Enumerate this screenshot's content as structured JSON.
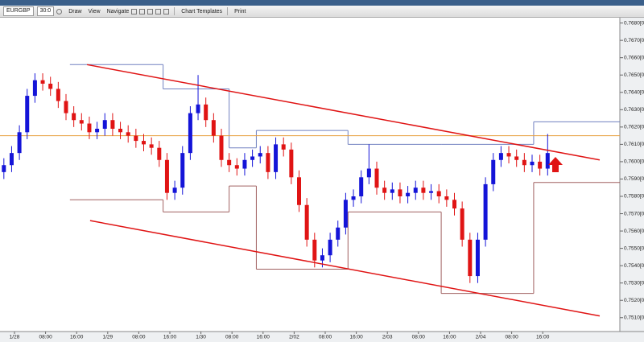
{
  "toolbar": {
    "symbol": "EURGBP",
    "period": "30:0",
    "menus": [
      "Draw",
      "View",
      "Navigate",
      "Chart Templates",
      "Print"
    ]
  },
  "chart_data": {
    "type": "candlestick",
    "x_labels": [
      "1/28",
      "08:00",
      "16:00",
      "1/29",
      "08:00",
      "16:00",
      "1/30",
      "08:00",
      "16:00",
      "2/02",
      "08:00",
      "16:00",
      "2/03",
      "08:00",
      "16:00",
      "2/04",
      "08:00",
      "16:00"
    ],
    "open": [
      0.7594,
      0.7598,
      0.7605,
      0.7617,
      0.7638,
      0.7647,
      0.7645,
      0.7642,
      0.7635,
      0.7628,
      0.7624,
      0.7622,
      0.7617,
      0.7619,
      0.7624,
      0.7619,
      0.7617,
      0.7615,
      0.7612,
      0.761,
      0.7608,
      0.7601,
      0.7582,
      0.7585,
      0.7605,
      0.7628,
      0.7633,
      0.7624,
      0.7615,
      0.7601,
      0.7598,
      0.7596,
      0.7601,
      0.7603,
      0.7605,
      0.7594,
      0.761,
      0.7607,
      0.7591,
      0.7575,
      0.7555,
      0.7543,
      0.7546,
      0.7555,
      0.7562,
      0.7578,
      0.758,
      0.7591,
      0.7596,
      0.7585,
      0.7582,
      0.7584,
      0.758,
      0.7582,
      0.7585,
      0.7582,
      0.7583,
      0.758,
      0.7578,
      0.7573,
      0.7555,
      0.7534,
      0.7555,
      0.7587,
      0.7601,
      0.7605,
      0.7603,
      0.7601,
      0.7598,
      0.76,
      0.7596
    ],
    "high": [
      0.7602,
      0.7609,
      0.7621,
      0.7642,
      0.7651,
      0.7651,
      0.7649,
      0.7646,
      0.7639,
      0.7632,
      0.7628,
      0.7626,
      0.7623,
      0.7628,
      0.7628,
      0.7623,
      0.7621,
      0.7619,
      0.7616,
      0.7614,
      0.7612,
      0.7605,
      0.7589,
      0.7609,
      0.7632,
      0.765,
      0.7637,
      0.7628,
      0.7619,
      0.7605,
      0.7602,
      0.7605,
      0.7607,
      0.7609,
      0.7609,
      0.7614,
      0.7614,
      0.7611,
      0.7595,
      0.7579,
      0.7559,
      0.755,
      0.7559,
      0.7566,
      0.7582,
      0.7584,
      0.7595,
      0.761,
      0.76,
      0.7589,
      0.7588,
      0.7588,
      0.7586,
      0.7589,
      0.7589,
      0.7587,
      0.7587,
      0.7584,
      0.7582,
      0.7577,
      0.7559,
      0.7559,
      0.7591,
      0.7605,
      0.7609,
      0.7609,
      0.7607,
      0.7605,
      0.7604,
      0.7604,
      0.7616
    ],
    "low": [
      0.759,
      0.7594,
      0.7601,
      0.7613,
      0.7634,
      0.7641,
      0.7638,
      0.7631,
      0.7624,
      0.762,
      0.7618,
      0.7613,
      0.7613,
      0.7615,
      0.7615,
      0.7613,
      0.7611,
      0.7608,
      0.7606,
      0.7604,
      0.7597,
      0.7578,
      0.7578,
      0.7581,
      0.7601,
      0.7624,
      0.762,
      0.7611,
      0.7597,
      0.7594,
      0.7592,
      0.7592,
      0.7597,
      0.7599,
      0.759,
      0.759,
      0.7603,
      0.7587,
      0.7571,
      0.7551,
      0.7539,
      0.7539,
      0.7542,
      0.7551,
      0.7558,
      0.7574,
      0.7576,
      0.7587,
      0.7581,
      0.7578,
      0.7578,
      0.7576,
      0.7576,
      0.7578,
      0.7578,
      0.7578,
      0.7576,
      0.7574,
      0.7569,
      0.7551,
      0.753,
      0.753,
      0.7551,
      0.7583,
      0.7597,
      0.7599,
      0.7597,
      0.7594,
      0.7594,
      0.7592,
      0.7592
    ],
    "close": [
      0.7598,
      0.7605,
      0.7617,
      0.7638,
      0.7647,
      0.7645,
      0.7642,
      0.7635,
      0.7628,
      0.7624,
      0.7622,
      0.7617,
      0.7619,
      0.7624,
      0.7619,
      0.7617,
      0.7615,
      0.7612,
      0.761,
      0.7608,
      0.7601,
      0.7582,
      0.7585,
      0.7605,
      0.7628,
      0.7633,
      0.7624,
      0.7615,
      0.7601,
      0.7598,
      0.7596,
      0.7601,
      0.7603,
      0.7605,
      0.7594,
      0.761,
      0.7607,
      0.7591,
      0.7575,
      0.7555,
      0.7543,
      0.7546,
      0.7555,
      0.7562,
      0.7578,
      0.758,
      0.7591,
      0.7596,
      0.7585,
      0.7582,
      0.7584,
      0.758,
      0.7582,
      0.7585,
      0.7582,
      0.7583,
      0.758,
      0.7578,
      0.7573,
      0.7555,
      0.7534,
      0.7555,
      0.7587,
      0.7601,
      0.7605,
      0.7603,
      0.7601,
      0.7598,
      0.76,
      0.7596,
      0.7605
    ],
    "up_color": "#1414d8",
    "down_color": "#e01414",
    "ylim": [
      0.7502,
      0.7684
    ],
    "yticks": [
      {
        "value": 0.768,
        "label": "0.7680[0]"
      },
      {
        "value": 0.767,
        "label": "0.7670[0]"
      },
      {
        "value": 0.766,
        "label": "0.7660[0]"
      },
      {
        "value": 0.765,
        "label": "0.7650[0]"
      },
      {
        "value": 0.764,
        "label": "0.7640[0]"
      },
      {
        "value": 0.763,
        "label": "0.7630[0]"
      },
      {
        "value": 0.762,
        "label": "0.7620[0]"
      },
      {
        "value": 0.761,
        "label": "0.7610[0]"
      },
      {
        "value": 0.76,
        "label": "0.7600[0]"
      },
      {
        "value": 0.759,
        "label": "0.7590[0]"
      },
      {
        "value": 0.758,
        "label": "0.7580[0]"
      },
      {
        "value": 0.757,
        "label": "0.7570[0]"
      },
      {
        "value": 0.756,
        "label": "0.7560[0]"
      },
      {
        "value": 0.755,
        "label": "0.7550[0]"
      },
      {
        "value": 0.754,
        "label": "0.7540[0]"
      },
      {
        "value": 0.753,
        "label": "0.7530[0]"
      },
      {
        "value": 0.752,
        "label": "0.7520[0]"
      },
      {
        "value": 0.751,
        "label": "0.7510[0]"
      }
    ],
    "hline": {
      "value": 0.7615,
      "color": "#e8a040"
    },
    "trendlines": [
      {
        "x": [
          10.7,
          76.7
        ],
        "y": [
          0.7656,
          0.7601
        ],
        "color": "#e01414"
      },
      {
        "x": [
          11.1,
          76.7
        ],
        "y": [
          0.7566,
          0.7511
        ],
        "color": "#e01414"
      }
    ],
    "day_ranges": [
      {
        "from": 8.5,
        "to": 20.5,
        "high": 0.7656,
        "low": 0.7578
      },
      {
        "from": 20.5,
        "to": 29,
        "high": 0.7642,
        "low": 0.7571
      },
      {
        "from": 29,
        "to": 32.5,
        "high": 0.7608,
        "low": 0.7586
      },
      {
        "from": 32.5,
        "to": 44.3,
        "high": 0.7618,
        "low": 0.7538
      },
      {
        "from": 44.3,
        "to": 56.3,
        "high": 0.761,
        "low": 0.7571
      },
      {
        "from": 56.3,
        "to": 68.2,
        "high": 0.761,
        "low": 0.7524
      },
      {
        "from": 68.2,
        "to": 79.3,
        "high": 0.7623,
        "low": 0.7588
      }
    ],
    "high_color": "#7080c0",
    "low_color": "#a06060"
  }
}
